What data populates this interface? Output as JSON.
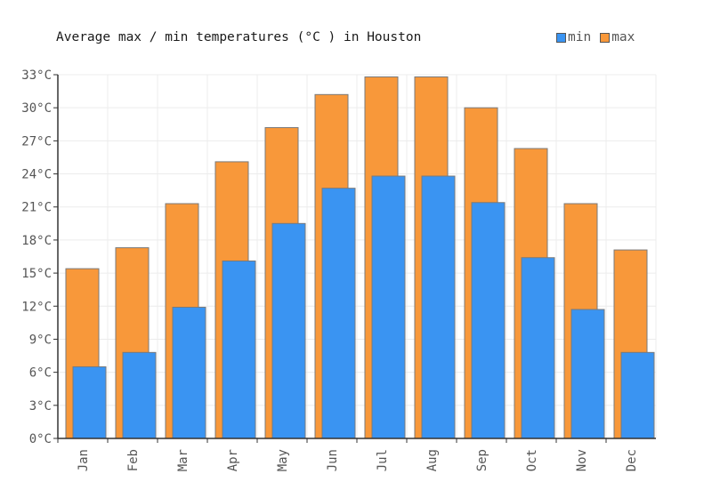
{
  "chart_data": {
    "type": "bar",
    "title": "Average max / min temperatures (°C ) in Houston",
    "xlabel": "",
    "ylabel": "",
    "unit": "°C",
    "categories": [
      "Jan",
      "Feb",
      "Mar",
      "Apr",
      "May",
      "Jun",
      "Jul",
      "Aug",
      "Sep",
      "Oct",
      "Nov",
      "Dec"
    ],
    "series": [
      {
        "name": "min",
        "color": "#3a94f2",
        "values": [
          6.5,
          7.8,
          11.9,
          16.1,
          19.5,
          22.7,
          23.8,
          23.8,
          21.4,
          16.4,
          11.7,
          7.8
        ]
      },
      {
        "name": "max",
        "color": "#f8983a",
        "values": [
          15.4,
          17.3,
          21.3,
          25.1,
          28.2,
          31.2,
          32.8,
          32.8,
          30.0,
          26.3,
          21.3,
          17.1
        ]
      }
    ],
    "ylim": [
      0,
      33
    ],
    "yticks": [
      0,
      3,
      6,
      9,
      12,
      15,
      18,
      21,
      24,
      27,
      30,
      33
    ],
    "ytick_labels": [
      "0°C",
      "3°C",
      "6°C",
      "9°C",
      "12°C",
      "15°C",
      "18°C",
      "21°C",
      "24°C",
      "27°C",
      "30°C",
      "33°C"
    ],
    "grid": true,
    "legend": "top-right"
  }
}
